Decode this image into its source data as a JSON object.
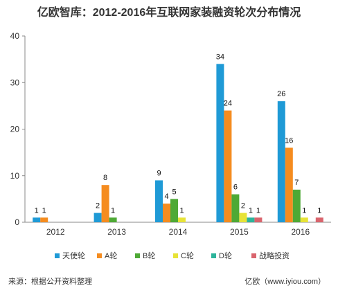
{
  "chart_data": {
    "type": "bar",
    "title": "亿欧智库：2012-2016年互联网家装融资轮次分布情况",
    "categories": [
      "2012",
      "2013",
      "2014",
      "2015",
      "2016"
    ],
    "ylim": [
      0,
      40
    ],
    "yticks": [
      0,
      10,
      20,
      30,
      40
    ],
    "grid": false,
    "legend_position": "bottom",
    "series": [
      {
        "name": "天使轮",
        "color": "#1f9ad6",
        "values": [
          1,
          2,
          9,
          34,
          26
        ]
      },
      {
        "name": "A轮",
        "color": "#f58c1f",
        "values": [
          1,
          8,
          4,
          24,
          16
        ]
      },
      {
        "name": "B轮",
        "color": "#4ea935",
        "values": [
          null,
          1,
          5,
          6,
          7
        ]
      },
      {
        "name": "C轮",
        "color": "#e7e337",
        "values": [
          null,
          null,
          1,
          2,
          1
        ]
      },
      {
        "name": "D轮",
        "color": "#2db49b",
        "values": [
          null,
          null,
          null,
          1,
          null
        ]
      },
      {
        "name": "战略投资",
        "color": "#d9646d",
        "values": [
          null,
          null,
          null,
          1,
          1
        ]
      }
    ]
  },
  "footer": {
    "source": "来源：根据公开资料整理",
    "credit": "亿欧（www.iyiou.com）"
  }
}
